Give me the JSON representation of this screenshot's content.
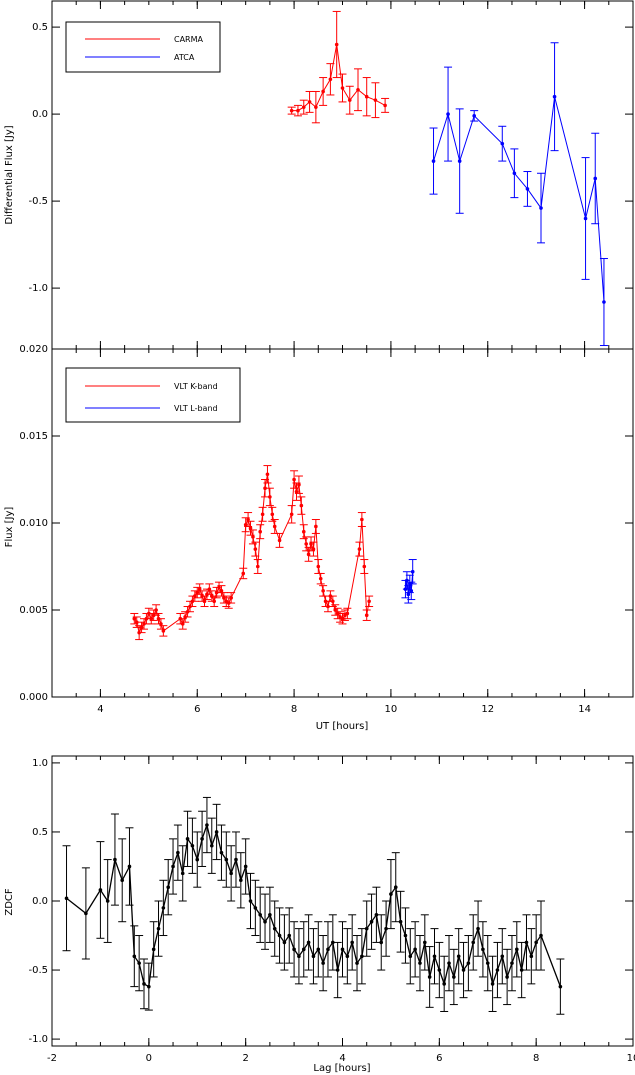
{
  "chart_data": [
    {
      "type": "line",
      "ylabel": "Differential Flux [Jy]",
      "xlim": [
        3,
        15
      ],
      "ylim": [
        -1.35,
        0.65
      ],
      "yticks": [
        0.5,
        0.0,
        -0.5,
        -1.0
      ],
      "yticklabels": [
        "0.5",
        "0.0",
        "-0.5",
        "-1.0"
      ],
      "legend_position": "top-left",
      "colors": {
        "CARMA": "#ff0000",
        "ATCA": "#0000ff"
      },
      "series": [
        {
          "name": "CARMA",
          "x": [
            7.95,
            8.08,
            8.2,
            8.32,
            8.45,
            8.6,
            8.75,
            8.88,
            9.0,
            9.15,
            9.32,
            9.5,
            9.68,
            9.88
          ],
          "y": [
            0.02,
            0.02,
            0.04,
            0.07,
            0.04,
            0.13,
            0.2,
            0.4,
            0.15,
            0.08,
            0.14,
            0.1,
            0.08,
            0.05
          ],
          "err": [
            0.02,
            0.03,
            0.04,
            0.06,
            0.09,
            0.08,
            0.09,
            0.19,
            0.08,
            0.08,
            0.12,
            0.11,
            0.1,
            0.04
          ]
        },
        {
          "name": "ATCA",
          "x": [
            10.88,
            11.18,
            11.42,
            11.72,
            12.3,
            12.55,
            12.82,
            13.1,
            13.38,
            14.02,
            14.22,
            14.4
          ],
          "y": [
            -0.27,
            0.0,
            -0.27,
            -0.01,
            -0.17,
            -0.34,
            -0.43,
            -0.54,
            0.1,
            -0.6,
            -0.37,
            -1.08
          ],
          "err": [
            0.19,
            0.27,
            0.3,
            0.03,
            0.1,
            0.14,
            0.1,
            0.2,
            0.31,
            0.35,
            0.26,
            0.25
          ]
        }
      ]
    },
    {
      "type": "line",
      "xlabel": "UT [hours]",
      "ylabel": "Flux [Jy]",
      "xlim": [
        3,
        15
      ],
      "ylim": [
        0.0,
        0.02
      ],
      "xticks": [
        4,
        6,
        8,
        10,
        12,
        14
      ],
      "xticklabels": [
        "4",
        "6",
        "8",
        "10",
        "12",
        "14"
      ],
      "yticks": [
        0.0,
        0.005,
        0.01,
        0.015,
        0.02
      ],
      "yticklabels": [
        "0.000",
        "0.005",
        "0.010",
        "0.015",
        "0.020"
      ],
      "legend_position": "top-left",
      "colors": {
        "VLT K-band": "#ff0000",
        "VLT L-band": "#0000ff"
      },
      "series": [
        {
          "name": "VLT K-band",
          "x": [
            4.7,
            4.75,
            4.8,
            4.85,
            4.9,
            4.95,
            5.0,
            5.05,
            5.1,
            5.15,
            5.2,
            5.25,
            5.3,
            5.65,
            5.7,
            5.75,
            5.8,
            5.85,
            5.9,
            5.95,
            6.0,
            6.05,
            6.1,
            6.15,
            6.2,
            6.25,
            6.3,
            6.35,
            6.4,
            6.45,
            6.5,
            6.55,
            6.6,
            6.65,
            6.7,
            6.95,
            7.0,
            7.05,
            7.1,
            7.15,
            7.2,
            7.25,
            7.3,
            7.35,
            7.4,
            7.45,
            7.5,
            7.55,
            7.6,
            7.7,
            7.95,
            8.0,
            8.05,
            8.1,
            8.15,
            8.2,
            8.25,
            8.3,
            8.35,
            8.4,
            8.45,
            8.5,
            8.55,
            8.6,
            8.65,
            8.7,
            8.75,
            8.8,
            8.85,
            8.9,
            8.95,
            9.0,
            9.05,
            9.1,
            9.35,
            9.4,
            9.45,
            9.5,
            9.55
          ],
          "y": [
            0.0045,
            0.0043,
            0.0037,
            0.004,
            0.0042,
            0.0045,
            0.0048,
            0.0045,
            0.0047,
            0.005,
            0.0045,
            0.0042,
            0.0038,
            0.0045,
            0.0042,
            0.0046,
            0.0049,
            0.0052,
            0.0055,
            0.0058,
            0.006,
            0.0062,
            0.0058,
            0.0055,
            0.0059,
            0.0062,
            0.0058,
            0.0055,
            0.006,
            0.0063,
            0.0061,
            0.0057,
            0.0055,
            0.0054,
            0.0057,
            0.0071,
            0.0099,
            0.0102,
            0.0097,
            0.0092,
            0.0085,
            0.0075,
            0.0095,
            0.0105,
            0.012,
            0.0128,
            0.0115,
            0.0105,
            0.0098,
            0.009,
            0.0105,
            0.0125,
            0.0118,
            0.0122,
            0.011,
            0.0095,
            0.0088,
            0.0082,
            0.0088,
            0.0085,
            0.0098,
            0.0075,
            0.0068,
            0.0061,
            0.0055,
            0.0052,
            0.0058,
            0.0055,
            0.005,
            0.0048,
            0.0046,
            0.0045,
            0.0047,
            0.0048,
            0.0085,
            0.0102,
            0.0075,
            0.0047,
            0.0055
          ],
          "err": [
            0.0003,
            0.0003,
            0.0004,
            0.0003,
            0.0003,
            0.0003,
            0.0003,
            0.0003,
            0.0003,
            0.0003,
            0.0003,
            0.0003,
            0.0003,
            0.0003,
            0.0003,
            0.0003,
            0.0003,
            0.0003,
            0.0003,
            0.0003,
            0.0003,
            0.0003,
            0.0003,
            0.0003,
            0.0003,
            0.0003,
            0.0003,
            0.0003,
            0.0003,
            0.0003,
            0.0003,
            0.0003,
            0.0003,
            0.0003,
            0.0003,
            0.0003,
            0.0004,
            0.0004,
            0.0004,
            0.0004,
            0.0004,
            0.0004,
            0.0004,
            0.0004,
            0.0005,
            0.0005,
            0.0005,
            0.0004,
            0.0004,
            0.0004,
            0.0005,
            0.0005,
            0.0005,
            0.0005,
            0.0005,
            0.0004,
            0.0004,
            0.0004,
            0.0004,
            0.0004,
            0.0004,
            0.0004,
            0.0003,
            0.0003,
            0.0003,
            0.0003,
            0.0003,
            0.0003,
            0.0003,
            0.0003,
            0.0003,
            0.0003,
            0.0003,
            0.0003,
            0.0004,
            0.0004,
            0.0004,
            0.0003,
            0.0003
          ]
        },
        {
          "name": "VLT L-band",
          "x": [
            10.3,
            10.33,
            10.36,
            10.39,
            10.42,
            10.45
          ],
          "y": [
            0.0062,
            0.0067,
            0.0059,
            0.0065,
            0.0061,
            0.0072
          ],
          "err": [
            0.0005,
            0.0005,
            0.0005,
            0.0005,
            0.0005,
            0.0007
          ]
        }
      ]
    },
    {
      "type": "line",
      "xlabel": "Lag [hours]",
      "ylabel": "ZDCF",
      "xlim": [
        -2,
        10
      ],
      "ylim": [
        -1.05,
        1.05
      ],
      "xticks": [
        -2,
        0,
        2,
        4,
        6,
        8,
        10
      ],
      "xticklabels": [
        "-2",
        "0",
        "2",
        "4",
        "6",
        "8",
        "10"
      ],
      "yticks": [
        1.0,
        0.5,
        0.0,
        -0.5,
        -1.0
      ],
      "yticklabels": [
        "1.0",
        "0.5",
        "0.0",
        "-0.5",
        "-1.0"
      ],
      "color": "#000000",
      "series": [
        {
          "x": [
            -1.7,
            -1.3,
            -1.0,
            -0.85,
            -0.7,
            -0.55,
            -0.4,
            -0.3,
            -0.2,
            -0.1,
            0.0,
            0.1,
            0.2,
            0.3,
            0.4,
            0.5,
            0.6,
            0.7,
            0.8,
            0.9,
            1.0,
            1.1,
            1.2,
            1.3,
            1.4,
            1.5,
            1.6,
            1.7,
            1.8,
            1.9,
            2.0,
            2.1,
            2.2,
            2.3,
            2.4,
            2.5,
            2.6,
            2.7,
            2.8,
            2.9,
            3.0,
            3.1,
            3.2,
            3.3,
            3.4,
            3.5,
            3.6,
            3.7,
            3.8,
            3.9,
            4.0,
            4.1,
            4.2,
            4.3,
            4.4,
            4.5,
            4.6,
            4.7,
            4.8,
            4.9,
            5.0,
            5.1,
            5.2,
            5.3,
            5.4,
            5.5,
            5.6,
            5.7,
            5.8,
            5.9,
            6.0,
            6.1,
            6.2,
            6.3,
            6.4,
            6.5,
            6.6,
            6.7,
            6.8,
            6.9,
            7.0,
            7.1,
            7.2,
            7.3,
            7.4,
            7.5,
            7.6,
            7.7,
            7.8,
            7.9,
            8.0,
            8.1,
            8.5
          ],
          "y": [
            0.02,
            -0.09,
            0.08,
            0.0,
            0.3,
            0.15,
            0.25,
            -0.4,
            -0.45,
            -0.6,
            -0.62,
            -0.35,
            -0.2,
            -0.05,
            0.1,
            0.25,
            0.35,
            0.2,
            0.45,
            0.4,
            0.3,
            0.45,
            0.55,
            0.4,
            0.5,
            0.35,
            0.3,
            0.2,
            0.3,
            0.15,
            0.25,
            0.0,
            -0.05,
            -0.1,
            -0.15,
            -0.1,
            -0.2,
            -0.25,
            -0.3,
            -0.25,
            -0.35,
            -0.4,
            -0.35,
            -0.3,
            -0.4,
            -0.35,
            -0.45,
            -0.35,
            -0.3,
            -0.5,
            -0.35,
            -0.4,
            -0.3,
            -0.45,
            -0.4,
            -0.2,
            -0.15,
            -0.1,
            -0.3,
            -0.2,
            0.05,
            0.1,
            -0.15,
            -0.25,
            -0.4,
            -0.35,
            -0.45,
            -0.3,
            -0.55,
            -0.4,
            -0.5,
            -0.6,
            -0.45,
            -0.55,
            -0.4,
            -0.5,
            -0.45,
            -0.3,
            -0.2,
            -0.35,
            -0.45,
            -0.6,
            -0.5,
            -0.4,
            -0.55,
            -0.45,
            -0.35,
            -0.5,
            -0.3,
            -0.4,
            -0.3,
            -0.25,
            -0.62
          ],
          "err": [
            0.38,
            0.33,
            0.35,
            0.3,
            0.33,
            0.3,
            0.28,
            0.22,
            0.2,
            0.18,
            0.17,
            0.2,
            0.2,
            0.2,
            0.2,
            0.2,
            0.2,
            0.2,
            0.2,
            0.2,
            0.2,
            0.2,
            0.2,
            0.2,
            0.2,
            0.2,
            0.2,
            0.2,
            0.2,
            0.2,
            0.2,
            0.2,
            0.2,
            0.2,
            0.2,
            0.2,
            0.2,
            0.2,
            0.2,
            0.2,
            0.2,
            0.2,
            0.2,
            0.2,
            0.2,
            0.2,
            0.2,
            0.2,
            0.2,
            0.2,
            0.2,
            0.2,
            0.2,
            0.2,
            0.2,
            0.2,
            0.2,
            0.2,
            0.2,
            0.2,
            0.25,
            0.25,
            0.22,
            0.2,
            0.2,
            0.2,
            0.2,
            0.2,
            0.22,
            0.2,
            0.2,
            0.2,
            0.2,
            0.2,
            0.2,
            0.2,
            0.2,
            0.2,
            0.2,
            0.2,
            0.2,
            0.2,
            0.2,
            0.2,
            0.2,
            0.2,
            0.2,
            0.2,
            0.2,
            0.2,
            0.2,
            0.25,
            0.2
          ]
        }
      ]
    }
  ]
}
